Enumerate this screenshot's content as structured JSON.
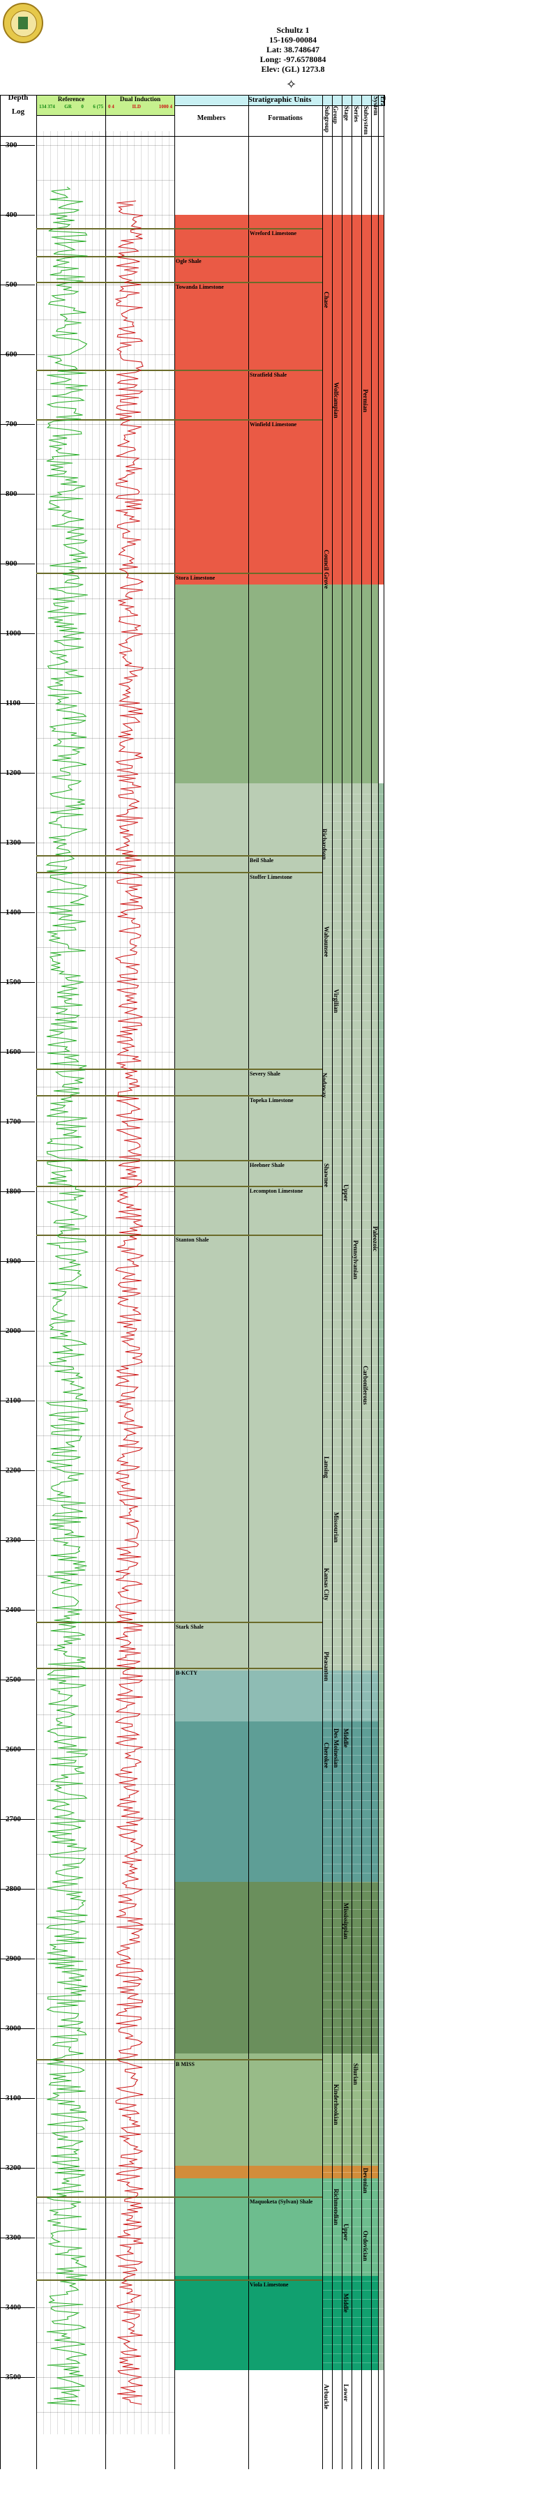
{
  "well": {
    "name": "Schultz 1",
    "api": "15-169-00084",
    "lat": "Lat: 38.748647",
    "long": "Long: -97.6578084",
    "elev": "Elev: (GL) 1273.8"
  },
  "columns": {
    "depth": "Depth",
    "log": "Log",
    "reference": "Reference",
    "ref_scale_left": "134 374",
    "ref_scale_mid": "GR",
    "ref_scale_right": "0",
    "ref_scale_right2": "6 (75",
    "dual_induction": "Dual Induction",
    "dual_left": "0 4",
    "dual_mid": "ILD",
    "dual_right": "1000 4",
    "strat_units": "Stratigraphic Units",
    "members": "Members",
    "formations": "Formations",
    "subgroup": "Subgroup",
    "group": "Group",
    "stage": "Stage",
    "series": "Series",
    "subsystem": "Subsystem",
    "system": "System",
    "era": "Era"
  },
  "depth_ticks": [
    "300",
    "400",
    "500",
    "600",
    "700",
    "800",
    "900",
    "1000",
    "1100",
    "1200",
    "1300",
    "1400",
    "1500",
    "1600",
    "1700",
    "1800",
    "1900",
    "2000",
    "2100",
    "2200",
    "2300",
    "2400",
    "2500",
    "2600",
    "2700",
    "2800",
    "2900",
    "3000",
    "3100",
    "3200",
    "3300",
    "3400",
    "3500"
  ],
  "members": [
    {
      "label": "Wreford Limestone",
      "d": 419,
      "col": "form"
    },
    {
      "label": "Ogle Shale",
      "d": 459,
      "col": "mem"
    },
    {
      "label": "Towanda Limestone",
      "d": 496,
      "col": "mem"
    },
    {
      "label": "Stratfield Shale",
      "d": 622,
      "col": "form"
    },
    {
      "label": "Winfield Limestone",
      "d": 693,
      "col": "form"
    },
    {
      "label": "Stora Limestone",
      "d": 913,
      "col": "mem"
    },
    {
      "label": "Beil Shale",
      "d": 1318,
      "col": "form"
    },
    {
      "label": "Stoffer Limestone",
      "d": 1342,
      "col": "form"
    },
    {
      "label": "Severy Shale",
      "d": 1624,
      "col": "form"
    },
    {
      "label": "Topeka Limestone",
      "d": 1662,
      "col": "form"
    },
    {
      "label": "Heebner Shale",
      "d": 1755,
      "col": "form"
    },
    {
      "label": "Lecompton Limestone",
      "d": 1792,
      "col": "form"
    },
    {
      "label": "Stanton Shale",
      "d": 1862,
      "col": "mem"
    },
    {
      "label": "Stark Shale",
      "d": 2417,
      "col": "mem"
    },
    {
      "label": "B-KCTY",
      "d": 2483,
      "col": "mem"
    },
    {
      "label": "B MISS",
      "d": 3044,
      "col": "mem"
    },
    {
      "label": "Maquoketa (Sylvan) Shale",
      "d": 3241,
      "col": "form"
    },
    {
      "label": "Viola Limestone",
      "d": 3360,
      "col": "form"
    }
  ],
  "units": [
    {
      "label": "Chase",
      "col": 0,
      "d": 510
    },
    {
      "label": "Council Grove",
      "col": 0,
      "d": 880
    },
    {
      "label": "Richardson",
      "col": -1,
      "d": 1280
    },
    {
      "label": "Wabaunsee",
      "col": 0,
      "d": 1420
    },
    {
      "label": "Shawnee",
      "col": 0,
      "d": 1760
    },
    {
      "label": "Lansing",
      "col": 0,
      "d": 2180
    },
    {
      "label": "Kansas City",
      "col": 0,
      "d": 2340
    },
    {
      "label": "Pleasanton",
      "col": 0,
      "d": 2460
    },
    {
      "label": "Nodaway",
      "col": -1,
      "d": 1630
    },
    {
      "label": "Wolfcampian",
      "col": 1,
      "d": 640
    },
    {
      "label": "Virgilian",
      "col": 1,
      "d": 1510
    },
    {
      "label": "Missourian",
      "col": 1,
      "d": 2260
    },
    {
      "label": "Cherokee",
      "col": 0,
      "d": 2590
    },
    {
      "label": "Des Moinesian",
      "col": 1,
      "d": 2570
    },
    {
      "label": "Upper",
      "col": 2,
      "d": 1790
    },
    {
      "label": "Middle",
      "col": 2,
      "d": 2570
    },
    {
      "label": "Mississippian",
      "col": 2,
      "d": 2820
    },
    {
      "label": "Kinderhookian",
      "col": 1,
      "d": 3080
    },
    {
      "label": "Upper",
      "col": 2,
      "d": 3280
    },
    {
      "label": "Richmondian",
      "col": 1,
      "d": 3230
    },
    {
      "label": "Middle",
      "col": 2,
      "d": 3380
    },
    {
      "label": "Lower",
      "col": 2,
      "d": 3510
    },
    {
      "label": "Arbuckle",
      "col": 0,
      "d": 3510
    },
    {
      "label": "Pennsylvanian",
      "col": 3,
      "d": 1870
    },
    {
      "label": "Carboniferous",
      "col": 4,
      "d": 2050
    },
    {
      "label": "Permian",
      "col": 4,
      "d": 650
    },
    {
      "label": "Ordovician",
      "col": 4,
      "d": 3290
    },
    {
      "label": "Paleozoic",
      "col": 5,
      "d": 1850
    },
    {
      "label": "Devonian",
      "col": 4,
      "d": 3200
    },
    {
      "label": "Silurian",
      "col": 3,
      "d": 3050
    }
  ],
  "colors": {
    "permian": "#ea5a45",
    "penn_light": "#bacdb4",
    "penn_mid": "#8fb382",
    "des_moines": "#8ebcb4",
    "cherokee": "#5e9e96",
    "miss": "#6a8f5c",
    "kinder": "#98bb88",
    "devonian": "#d28d3b",
    "ord_upper": "#6dbd8e",
    "ord_mid": "#11a06f",
    "paleozoic": "#9ac0a4",
    "header_green": "#c6f08e",
    "header_cyan": "#c8f0f3",
    "gr": "#22aa22",
    "ild": "#cc1111",
    "horizon": "#6b6b2a"
  }
}
